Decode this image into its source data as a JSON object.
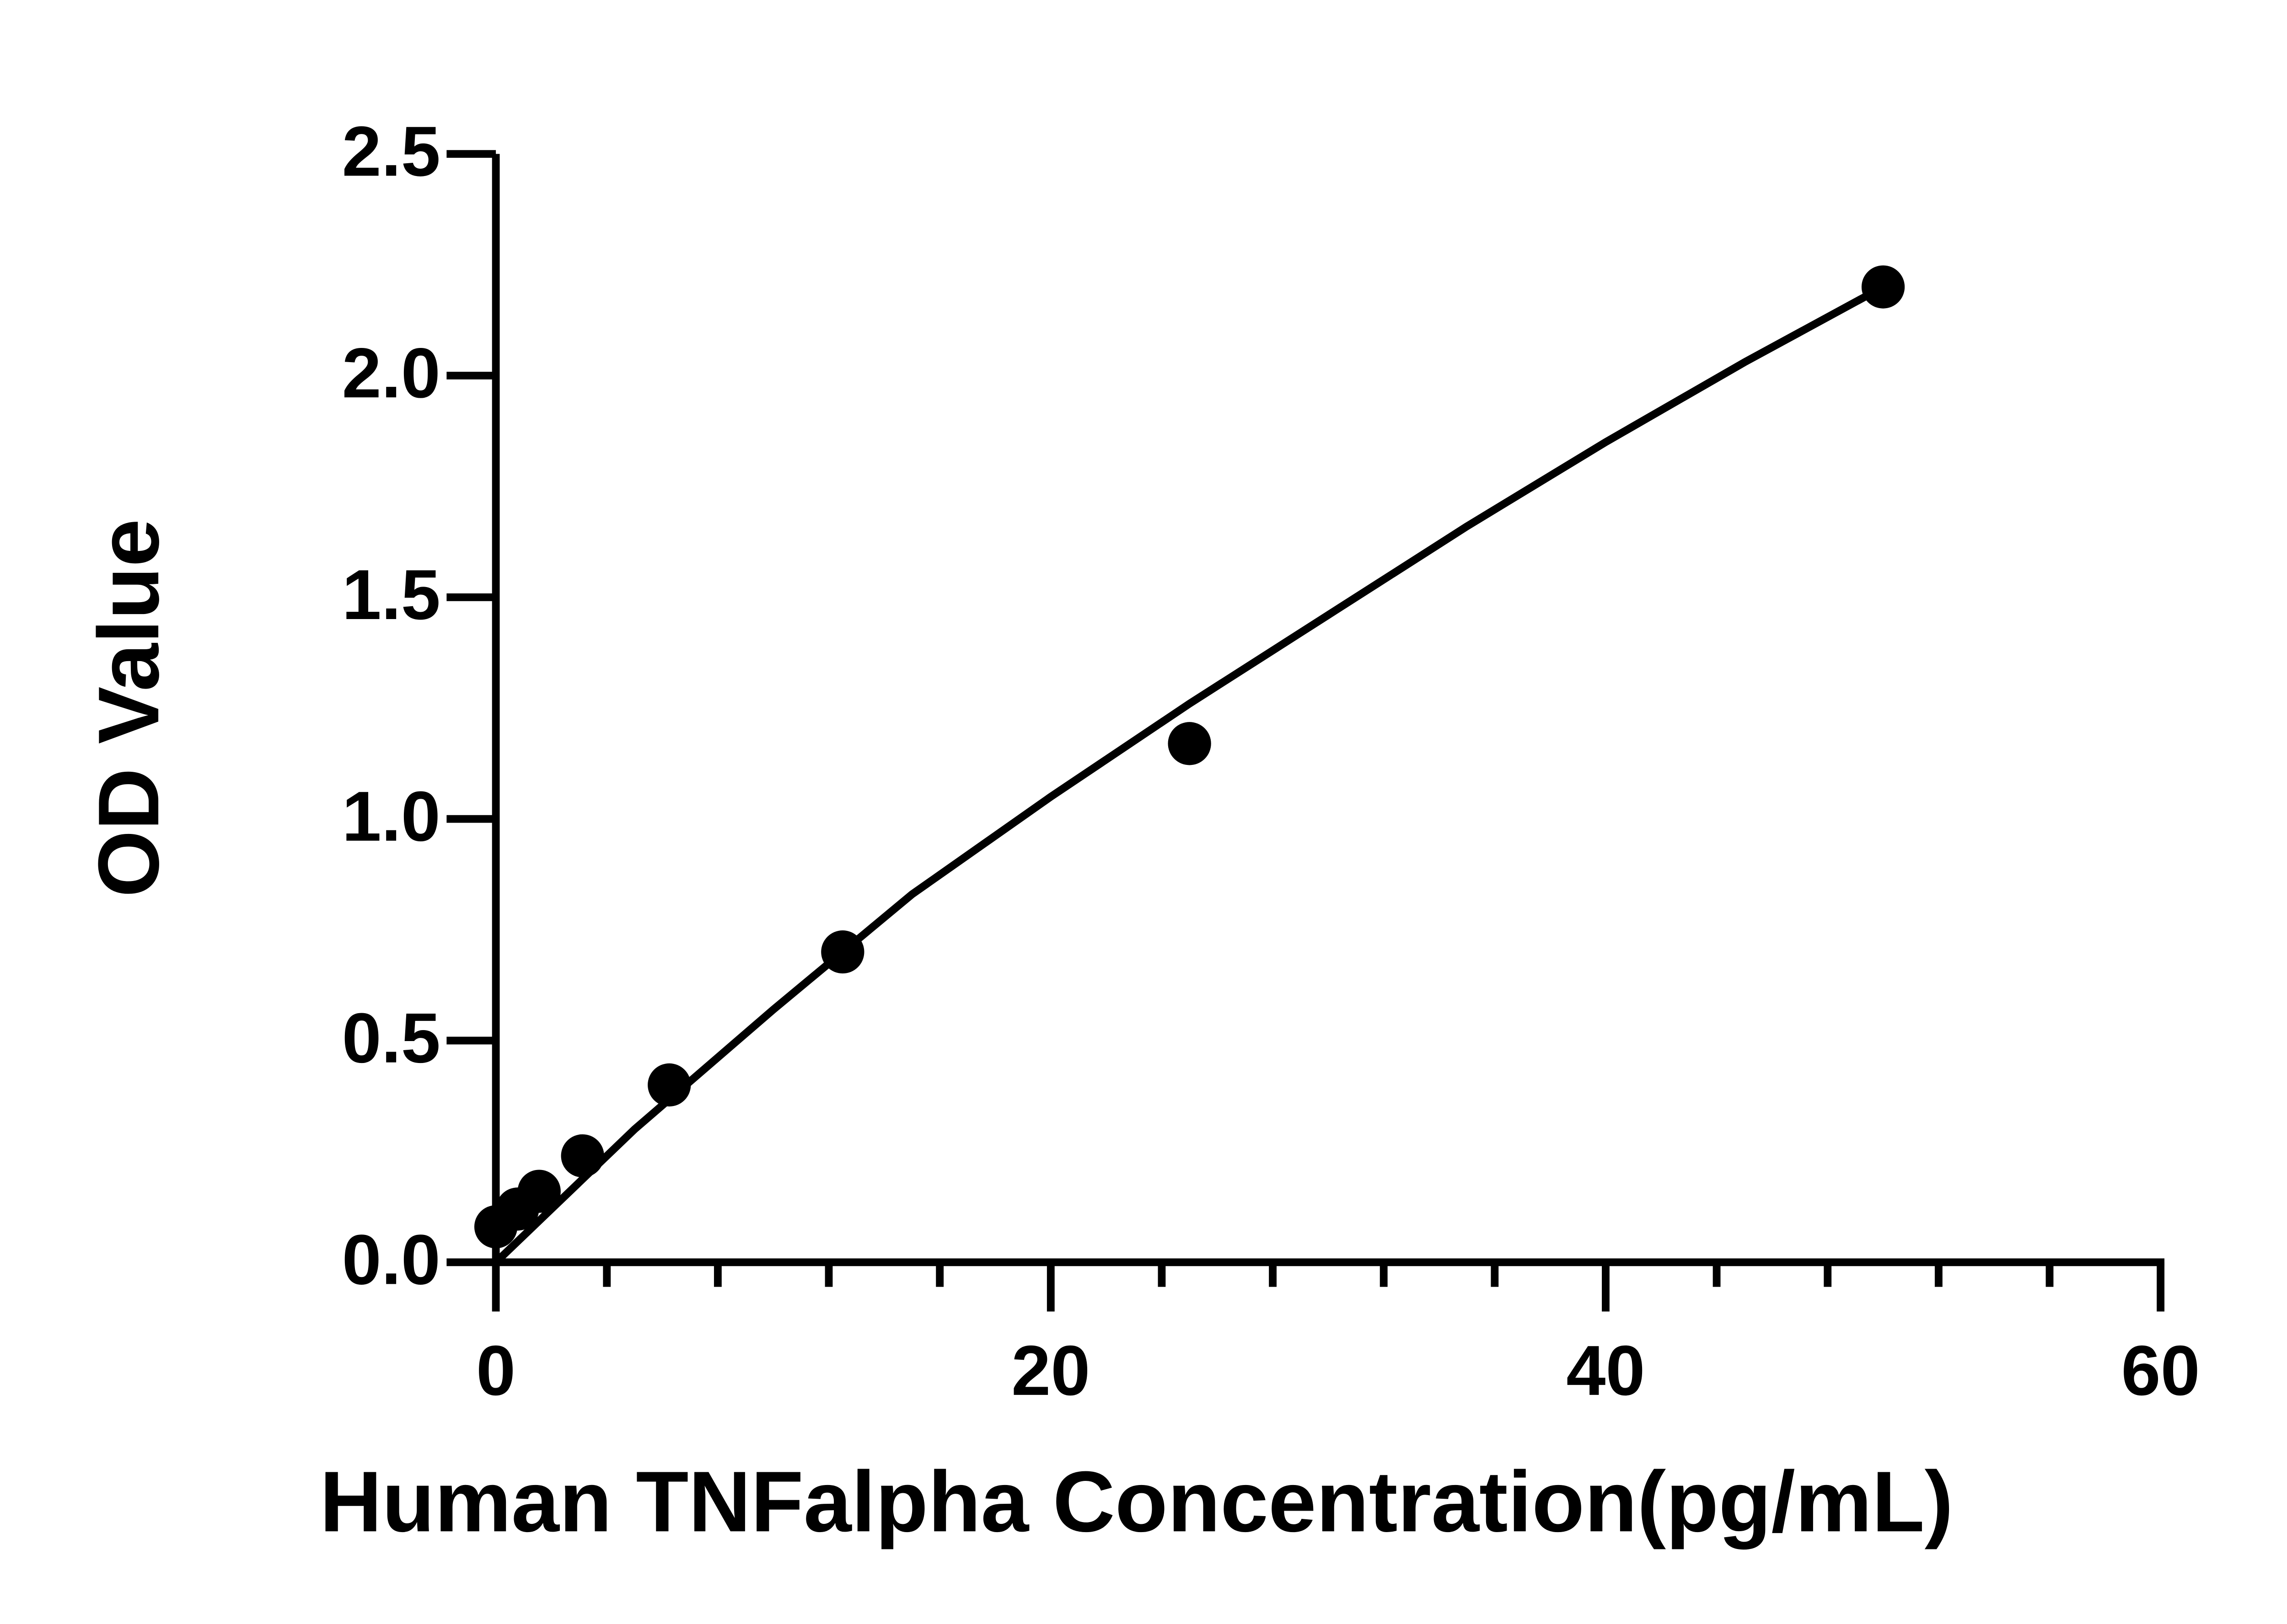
{
  "chart_data": {
    "type": "scatter",
    "x_label": "Human TNFalpha  Concentration(pg/mL)",
    "y_label": "OD Value",
    "x": [
      0,
      0.78,
      1.56,
      3.125,
      6.25,
      12.5,
      25,
      50
    ],
    "values": [
      0.08,
      0.12,
      0.16,
      0.24,
      0.4,
      0.7,
      1.17,
      2.2
    ],
    "color": "#000000",
    "fit": {
      "x": [
        0,
        5,
        10,
        15,
        20,
        25,
        30,
        35,
        40,
        45,
        50
      ],
      "values": [
        0.0,
        0.3,
        0.57,
        0.83,
        1.05,
        1.26,
        1.46,
        1.66,
        1.85,
        2.03,
        2.2
      ]
    },
    "xlim": [
      0,
      60
    ],
    "ylim": [
      0,
      2.5
    ],
    "xticks": [
      0,
      20,
      40,
      60
    ],
    "xminorticks": [
      4,
      8,
      12,
      16,
      24,
      28,
      32,
      36,
      44,
      48,
      52,
      56
    ],
    "yticks": [
      {
        "value": 0,
        "label": "0.0"
      },
      {
        "value": 0.5,
        "label": "0.5"
      },
      {
        "value": 1,
        "label": "1.0"
      },
      {
        "value": 1.5,
        "label": "1.5"
      },
      {
        "value": 2,
        "label": "2.0"
      },
      {
        "value": 2.5,
        "label": "2.5"
      }
    ],
    "grid": false
  }
}
